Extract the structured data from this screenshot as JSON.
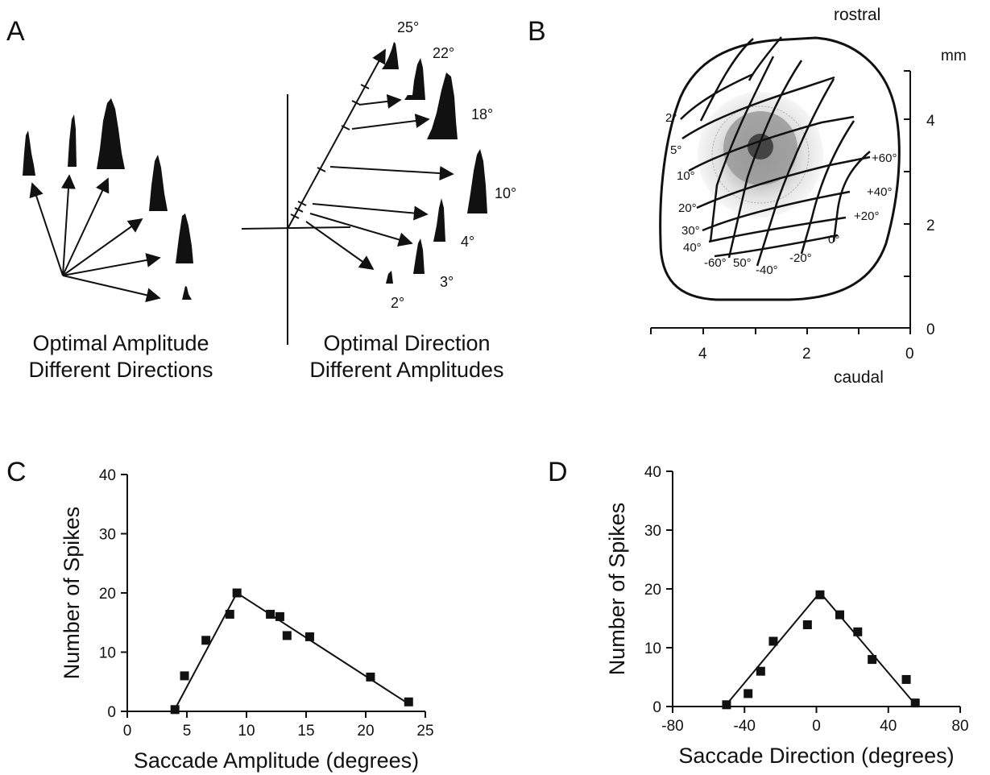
{
  "panels": {
    "A": {
      "letter": "A",
      "left_caption": [
        "Optimal Amplitude",
        "Different Directions"
      ],
      "right_caption": [
        "Optimal Direction",
        "Different Amplitudes"
      ],
      "amplitude_labels": [
        "25°",
        "22°",
        "18°",
        "10°",
        "4°",
        "3°",
        "2°"
      ]
    },
    "B": {
      "letter": "B",
      "rostral": "rostral",
      "caudal": "caudal",
      "unit": "mm",
      "y_ticks": [
        "0",
        "2",
        "4"
      ],
      "x_ticks": [
        "4",
        "2",
        "0"
      ],
      "amplitude_labels": [
        "2°",
        "5°",
        "10°",
        "20°",
        "30°",
        "40°",
        "50°"
      ],
      "direction_labels": [
        "+60°",
        "+40°",
        "+20°",
        "0°",
        "-20°",
        "-40°",
        "-60°"
      ]
    }
  },
  "chart_data": [
    {
      "letter": "C",
      "type": "scatter",
      "xlabel": "Saccade Amplitude (degrees)",
      "ylabel": "Number of Spikes",
      "xlim": [
        0,
        25
      ],
      "ylim": [
        0,
        40
      ],
      "xticks": [
        0,
        5,
        10,
        15,
        20,
        25
      ],
      "yticks": [
        0,
        10,
        20,
        30,
        40
      ],
      "points": [
        {
          "x": 4,
          "y": 0.3
        },
        {
          "x": 4.8,
          "y": 6
        },
        {
          "x": 6.6,
          "y": 12
        },
        {
          "x": 8.6,
          "y": 16.4
        },
        {
          "x": 9.2,
          "y": 20
        },
        {
          "x": 12,
          "y": 16.4
        },
        {
          "x": 12.8,
          "y": 16
        },
        {
          "x": 13.4,
          "y": 12.8
        },
        {
          "x": 15.3,
          "y": 12.6
        },
        {
          "x": 20.4,
          "y": 5.8
        },
        {
          "x": 23.6,
          "y": 1.6
        }
      ],
      "fit_line": [
        {
          "x": 3.9,
          "y": 0
        },
        {
          "x": 9.2,
          "y": 20
        },
        {
          "x": 23.8,
          "y": 1
        }
      ]
    },
    {
      "letter": "D",
      "type": "scatter",
      "xlabel": "Saccade Direction (degrees)",
      "ylabel": "Number of Spikes",
      "xlim": [
        -80,
        80
      ],
      "ylim": [
        0,
        40
      ],
      "xticks": [
        -80,
        -40,
        0,
        40,
        80
      ],
      "yticks": [
        0,
        10,
        20,
        30,
        40
      ],
      "points": [
        {
          "x": -50,
          "y": 0.3
        },
        {
          "x": -38,
          "y": 2.2
        },
        {
          "x": -31,
          "y": 6
        },
        {
          "x": -24,
          "y": 11.1
        },
        {
          "x": -5,
          "y": 13.9
        },
        {
          "x": 2,
          "y": 19
        },
        {
          "x": 13,
          "y": 15.6
        },
        {
          "x": 23,
          "y": 12.7
        },
        {
          "x": 31,
          "y": 8
        },
        {
          "x": 50,
          "y": 4.6
        },
        {
          "x": 55,
          "y": 0.6
        }
      ],
      "fit_line": [
        {
          "x": -51,
          "y": 0
        },
        {
          "x": 2,
          "y": 19.4
        },
        {
          "x": 56,
          "y": 0
        }
      ]
    }
  ]
}
